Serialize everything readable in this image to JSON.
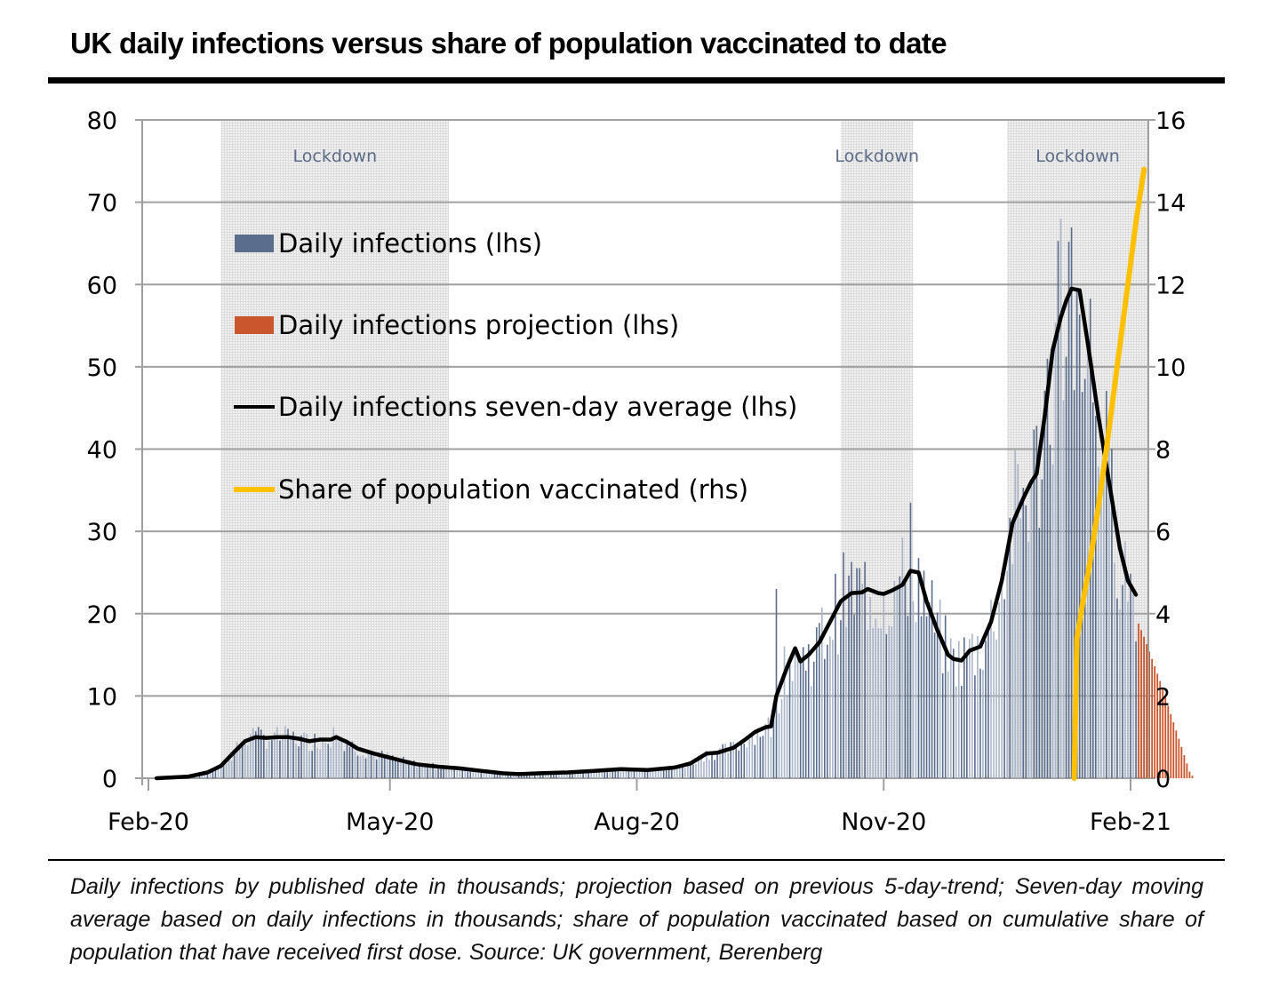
{
  "title": "UK daily infections versus share of population vaccinated to date",
  "footnote": "Daily infections by published date in thousands; projection based on previous 5-day-trend; Seven-day moving average based on daily infections in thousands; share of population vaccinated based on cumulative share of population that have received first dose. Source: UK government, Berenberg",
  "chart_data": {
    "type": "bar",
    "title": "UK daily infections versus share of population vaccinated to date",
    "xlabel": "",
    "ylabel": "",
    "x_unit": "days since 2020-02-01",
    "x_range": [
      0,
      373
    ],
    "x_ticks": [
      {
        "label": "Feb-20",
        "day": 0
      },
      {
        "label": "May-20",
        "day": 90
      },
      {
        "label": "Aug-20",
        "day": 182
      },
      {
        "label": "Nov-20",
        "day": 274
      },
      {
        "label": "Feb-21",
        "day": 366
      }
    ],
    "y_left": {
      "range": [
        0,
        80
      ],
      "ticks": [
        "0",
        "10",
        "20",
        "30",
        "40",
        "50",
        "60",
        "70",
        "80"
      ]
    },
    "y_right": {
      "range": [
        0,
        16
      ],
      "ticks": [
        "0",
        "2",
        "4",
        "6",
        "8",
        "10",
        "12",
        "14",
        "16"
      ]
    },
    "grid": true,
    "legend_position": "top-left",
    "colors": {
      "daily": "#5b6d8c",
      "projection": "#c9572b",
      "average": "#000000",
      "vaccinated": "#ffc000",
      "lockdown_shade": "#e6e6e6",
      "lockdown_text": "#5a6b87"
    },
    "legend": [
      {
        "label": "Daily infections (lhs)",
        "kind": "box",
        "color": "#5b6d8c"
      },
      {
        "label": "Daily infections projection (lhs)",
        "kind": "box",
        "color": "#c9572b"
      },
      {
        "label": "Daily infections seven-day average (lhs)",
        "kind": "line",
        "color": "#000000"
      },
      {
        "label": "Share of population vaccinated (rhs)",
        "kind": "line",
        "color": "#ffc000"
      }
    ],
    "lockdowns": [
      {
        "label": "Lockdown",
        "start_day": 27,
        "end_day": 112
      },
      {
        "label": "Lockdown",
        "start_day": 258,
        "end_day": 285
      },
      {
        "label": "Lockdown",
        "start_day": 320,
        "end_day": 373
      }
    ],
    "seven_day_average": {
      "axis": "left",
      "points": [
        [
          3,
          0.0
        ],
        [
          15,
          0.2
        ],
        [
          22,
          0.7
        ],
        [
          27,
          1.5
        ],
        [
          32,
          3.2
        ],
        [
          36,
          4.5
        ],
        [
          40,
          5.0
        ],
        [
          44,
          4.9
        ],
        [
          48,
          5.0
        ],
        [
          52,
          5.0
        ],
        [
          56,
          4.8
        ],
        [
          60,
          4.5
        ],
        [
          64,
          4.7
        ],
        [
          68,
          4.7
        ],
        [
          70,
          5.0
        ],
        [
          74,
          4.4
        ],
        [
          78,
          3.6
        ],
        [
          84,
          3.0
        ],
        [
          90,
          2.5
        ],
        [
          96,
          2.0
        ],
        [
          100,
          1.7
        ],
        [
          108,
          1.4
        ],
        [
          116,
          1.2
        ],
        [
          124,
          0.9
        ],
        [
          132,
          0.6
        ],
        [
          138,
          0.5
        ],
        [
          146,
          0.6
        ],
        [
          156,
          0.7
        ],
        [
          166,
          0.9
        ],
        [
          176,
          1.1
        ],
        [
          186,
          1.0
        ],
        [
          196,
          1.3
        ],
        [
          202,
          1.8
        ],
        [
          208,
          3.0
        ],
        [
          212,
          3.1
        ],
        [
          218,
          3.7
        ],
        [
          222,
          4.6
        ],
        [
          226,
          5.6
        ],
        [
          230,
          6.2
        ],
        [
          232,
          6.3
        ],
        [
          234,
          10.0
        ],
        [
          238,
          13.5
        ],
        [
          241,
          15.8
        ],
        [
          243,
          14.2
        ],
        [
          246,
          15.0
        ],
        [
          250,
          16.5
        ],
        [
          254,
          19.0
        ],
        [
          258,
          21.5
        ],
        [
          262,
          22.5
        ],
        [
          266,
          22.6
        ],
        [
          268,
          23.0
        ],
        [
          272,
          22.5
        ],
        [
          274,
          22.4
        ],
        [
          277,
          22.8
        ],
        [
          281,
          23.5
        ],
        [
          284,
          25.2
        ],
        [
          287,
          25.0
        ],
        [
          290,
          21.5
        ],
        [
          294,
          18.0
        ],
        [
          298,
          15.0
        ],
        [
          300,
          14.5
        ],
        [
          303,
          14.3
        ],
        [
          306,
          15.5
        ],
        [
          310,
          16.0
        ],
        [
          314,
          19.0
        ],
        [
          318,
          24.0
        ],
        [
          322,
          31.0
        ],
        [
          326,
          34.0
        ],
        [
          329,
          36.0
        ],
        [
          331,
          37.0
        ],
        [
          334,
          44.0
        ],
        [
          337,
          52.0
        ],
        [
          340,
          56.0
        ],
        [
          342,
          58.0
        ],
        [
          344,
          59.5
        ],
        [
          347,
          59.3
        ],
        [
          350,
          53.0
        ],
        [
          354,
          44.0
        ],
        [
          358,
          36.0
        ],
        [
          362,
          28.0
        ],
        [
          365,
          24.0
        ],
        [
          368,
          22.3
        ]
      ]
    },
    "daily_infections_anchor": {
      "axis": "left",
      "note": "Daily bars fluctuate around the 7-day average; notable spikes",
      "peaks": [
        [
          39,
          6.1
        ],
        [
          69,
          6.2
        ],
        [
          234,
          23.0
        ],
        [
          284,
          33.5
        ],
        [
          340,
          68.0
        ]
      ],
      "last_actual_day": 368
    },
    "projection": {
      "axis": "left",
      "start_day": 369,
      "values": [
        18.8,
        18.0,
        17.2,
        16.3,
        15.4,
        14.5,
        13.6,
        12.7,
        11.8,
        10.8,
        9.8,
        8.8,
        7.8,
        6.8,
        5.8,
        4.8,
        3.8,
        2.8,
        1.8,
        0.8,
        0.3
      ]
    },
    "vaccinated_share": {
      "axis": "right",
      "points": [
        [
          345,
          0.0
        ],
        [
          346,
          3.4
        ],
        [
          348,
          4.2
        ],
        [
          351,
          5.3
        ],
        [
          354,
          6.6
        ],
        [
          357,
          8.0
        ],
        [
          360,
          9.5
        ],
        [
          363,
          11.0
        ],
        [
          366,
          12.5
        ],
        [
          368,
          13.5
        ],
        [
          371,
          14.8
        ]
      ]
    }
  }
}
